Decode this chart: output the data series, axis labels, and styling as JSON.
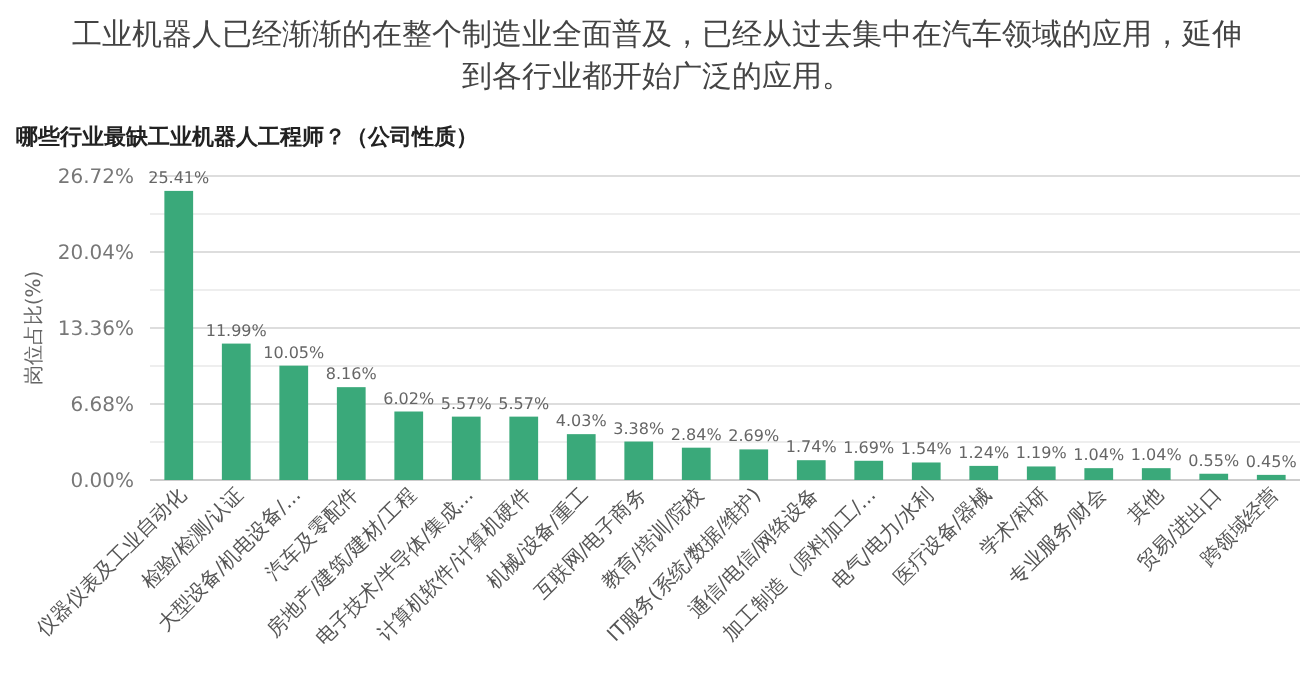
{
  "chart_data": {
    "type": "bar",
    "title": "工业机器人已经渐渐的在整个制造业全面普及，已经从过去集中在汽车领域的应用，延伸到各行业都开始广泛的应用。",
    "subtitle": "哪些行业最缺工业机器人工程师？（公司性质）",
    "ylabel": "岗位占比(%)",
    "categories": [
      "仪器仪表及工业自动化",
      "检验/检测/认证",
      "大型设备/机电设备/...",
      "汽车及零配件",
      "房地产/建筑/建材/工程",
      "电子技术/半导体/集成...",
      "计算机软件/计算机硬件",
      "机械/设备/重工",
      "互联网/电子商务",
      "教育/培训/院校",
      "IT服务(系统/数据/维护)",
      "通信/电信/网络设备",
      "加工制造（原料加工/...",
      "电气/电力/水利",
      "医疗设备/器械",
      "学术/科研",
      "专业服务/财会",
      "其他",
      "贸易/进出口",
      "跨领域经营"
    ],
    "values": [
      25.41,
      11.99,
      10.05,
      8.16,
      6.02,
      5.57,
      5.57,
      4.03,
      3.38,
      2.84,
      2.69,
      1.74,
      1.69,
      1.54,
      1.24,
      1.19,
      1.04,
      1.04,
      0.55,
      0.45
    ],
    "value_labels": [
      "25.41%",
      "11.99%",
      "10.05%",
      "8.16%",
      "6.02%",
      "5.57%",
      "5.57%",
      "4.03%",
      "3.38%",
      "2.84%",
      "2.69%",
      "1.74%",
      "1.69%",
      "1.54%",
      "1.24%",
      "1.19%",
      "1.04%",
      "1.04%",
      "0.55%",
      "0.45%"
    ],
    "color": "#3aa97a",
    "ylim": [
      0,
      26.72
    ],
    "yticks": [
      {
        "value": 0,
        "label": "0.00%"
      },
      {
        "value": 3.34,
        "label": null
      },
      {
        "value": 6.68,
        "label": "6.68%"
      },
      {
        "value": 10.02,
        "label": null
      },
      {
        "value": 13.36,
        "label": "13.36%"
      },
      {
        "value": 16.7,
        "label": null
      },
      {
        "value": 20.04,
        "label": "20.04%"
      },
      {
        "value": 23.38,
        "label": null
      },
      {
        "value": 26.72,
        "label": "26.72%"
      }
    ],
    "grid": "y"
  }
}
